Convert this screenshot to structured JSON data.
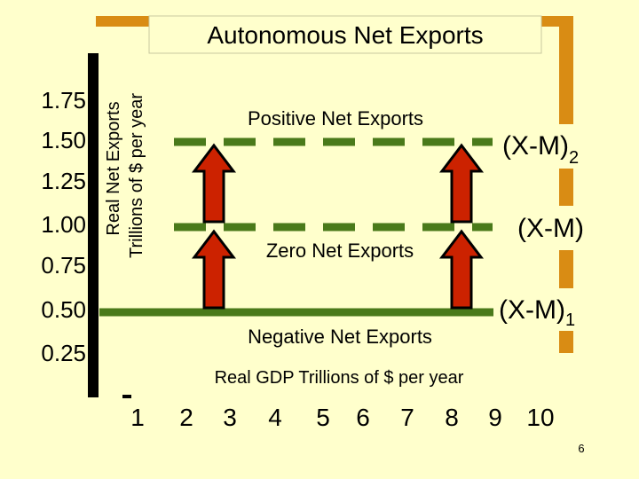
{
  "title": "Autonomous Net Exports",
  "y_axis_label_line1": "Real Net Exports",
  "y_axis_label_line2": "Trillions of $ per year",
  "x_axis_label": "Real GDP Trillions of $ per year",
  "y_ticks": [
    "1.75",
    "1.50",
    "1.25",
    "1.00",
    "0.75",
    "0.50",
    "0.25"
  ],
  "x_ticks": [
    "1",
    "2",
    "3",
    "4",
    "5",
    "6",
    "7",
    "8",
    "9",
    "10"
  ],
  "region_labels": {
    "positive": "Positive Net Exports",
    "zero": "Zero Net Exports",
    "negative": "Negative Net Exports"
  },
  "line_labels": {
    "upper_main": "(X-M)",
    "upper_sub": "2",
    "middle": "(X-M)",
    "lower_main": "(X-M)",
    "lower_sub": "1"
  },
  "page_number": "6",
  "colors": {
    "background": "#ffffcc",
    "label_box": "#ffffcc",
    "line": "#4a7a1a",
    "frame": "#d98c14",
    "arrow_fill": "#cc2200"
  }
}
